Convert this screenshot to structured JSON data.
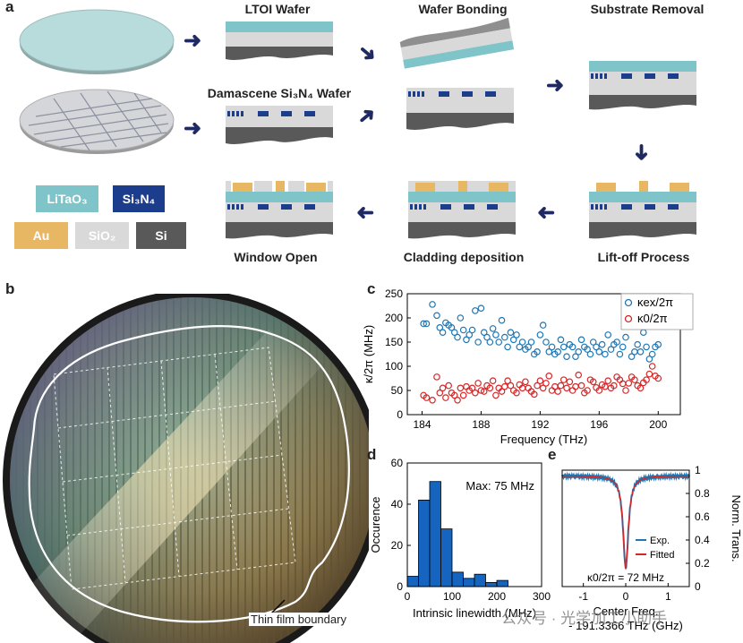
{
  "panel_a": {
    "panel_label": "a",
    "steps": {
      "ltoi_wafer": "LTOI Wafer",
      "wafer_bonding": "Wafer Bonding",
      "substrate_removal": "Substrate Removal",
      "damascene_wafer": "Damascene Si₃N₄ Wafer",
      "lift_off": "Lift-off Process",
      "cladding": "Cladding deposition",
      "window_open": "Window Open"
    },
    "legend": {
      "litao3": "LiTaO₃",
      "si3n4": "Si₃N₄",
      "au": "Au",
      "sio2": "SiO₂",
      "si": "Si"
    },
    "colors": {
      "litao3": "#7fc4c8",
      "si3n4": "#1c3c8c",
      "au": "#e8b764",
      "sio2": "#d9d9d9",
      "si": "#595959",
      "arrow": "#1f2a63"
    }
  },
  "panel_b": {
    "panel_label": "b",
    "annotation": "Thin film boundary"
  },
  "panel_c": {
    "panel_label": "c",
    "chart_data": {
      "type": "scatter",
      "xlabel": "Frequency (THz)",
      "ylabel": "κ/2π (MHz)",
      "xlim": [
        183,
        201.5
      ],
      "ylim": [
        0,
        250
      ],
      "xticks": [
        184,
        188,
        192,
        196,
        200
      ],
      "yticks": [
        0,
        50,
        100,
        150,
        200,
        250
      ],
      "series": [
        {
          "name": "κex/2π",
          "color": "#1f77b4",
          "x": [
            184.1,
            184.3,
            184.7,
            185.0,
            185.2,
            185.4,
            185.6,
            185.8,
            186.0,
            186.2,
            186.4,
            186.6,
            186.8,
            187.0,
            187.2,
            187.4,
            187.6,
            187.8,
            188.0,
            188.2,
            188.4,
            188.6,
            188.8,
            189.0,
            189.2,
            189.4,
            189.6,
            189.8,
            190.0,
            190.2,
            190.4,
            190.6,
            190.8,
            191.0,
            191.2,
            191.4,
            191.6,
            191.8,
            192.0,
            192.2,
            192.4,
            192.6,
            192.8,
            193.0,
            193.2,
            193.4,
            193.6,
            193.8,
            194.0,
            194.2,
            194.4,
            194.6,
            194.8,
            195.0,
            195.2,
            195.4,
            195.6,
            195.8,
            196.0,
            196.2,
            196.4,
            196.6,
            196.8,
            197.0,
            197.2,
            197.4,
            197.6,
            197.8,
            198.0,
            198.2,
            198.4,
            198.6,
            198.8,
            199.0,
            199.2,
            199.4,
            199.6,
            199.8,
            200.0
          ],
          "y": [
            188,
            188,
            228,
            205,
            180,
            170,
            190,
            185,
            180,
            170,
            160,
            200,
            175,
            155,
            165,
            175,
            215,
            150,
            220,
            170,
            160,
            150,
            178,
            165,
            150,
            195,
            160,
            140,
            170,
            155,
            165,
            140,
            150,
            135,
            140,
            150,
            125,
            130,
            165,
            185,
            150,
            130,
            140,
            125,
            130,
            155,
            140,
            120,
            145,
            140,
            120,
            130,
            155,
            140,
            135,
            125,
            150,
            140,
            130,
            145,
            125,
            165,
            135,
            145,
            150,
            125,
            140,
            160,
            185,
            120,
            130,
            145,
            130,
            170,
            140,
            115,
            125,
            140,
            145
          ]
        },
        {
          "name": "κ0/2π",
          "color": "#d62728",
          "x": [
            184.1,
            184.3,
            184.7,
            185.0,
            185.2,
            185.4,
            185.6,
            185.8,
            186.0,
            186.2,
            186.4,
            186.6,
            186.8,
            187.0,
            187.2,
            187.4,
            187.6,
            187.8,
            188.0,
            188.2,
            188.4,
            188.6,
            188.8,
            189.0,
            189.2,
            189.4,
            189.6,
            189.8,
            190.0,
            190.2,
            190.4,
            190.6,
            190.8,
            191.0,
            191.2,
            191.4,
            191.6,
            191.8,
            192.0,
            192.2,
            192.4,
            192.6,
            192.8,
            193.0,
            193.2,
            193.4,
            193.6,
            193.8,
            194.0,
            194.2,
            194.4,
            194.6,
            194.8,
            195.0,
            195.2,
            195.4,
            195.6,
            195.8,
            196.0,
            196.2,
            196.4,
            196.6,
            196.8,
            197.0,
            197.2,
            197.4,
            197.6,
            197.8,
            198.0,
            198.2,
            198.4,
            198.6,
            198.8,
            199.0,
            199.2,
            199.4,
            199.6,
            199.8,
            200.0
          ],
          "y": [
            40,
            35,
            30,
            78,
            45,
            55,
            35,
            60,
            45,
            40,
            30,
            55,
            40,
            58,
            50,
            55,
            45,
            65,
            50,
            48,
            60,
            55,
            70,
            40,
            55,
            48,
            58,
            70,
            60,
            50,
            45,
            62,
            55,
            68,
            55,
            48,
            42,
            60,
            70,
            55,
            65,
            80,
            50,
            58,
            48,
            60,
            72,
            55,
            68,
            50,
            58,
            82,
            60,
            45,
            50,
            72,
            68,
            56,
            50,
            62,
            58,
            70,
            55,
            60,
            78,
            72,
            64,
            50,
            65,
            78,
            72,
            60,
            55,
            66,
            72,
            84,
            100,
            80,
            75
          ]
        }
      ],
      "legend": [
        "κex/2π",
        "κ0/2π"
      ]
    }
  },
  "panel_d": {
    "panel_label": "d",
    "chart_data": {
      "type": "bar",
      "xlabel": "Intrinsic linewidth (MHz)",
      "ylabel": "Occurence",
      "xlim": [
        0,
        300
      ],
      "ylim": [
        0,
        60
      ],
      "xticks": [
        0,
        100,
        200,
        300
      ],
      "yticks": [
        0,
        20,
        40,
        60
      ],
      "bin_edges": [
        0,
        25,
        50,
        75,
        100,
        125,
        150,
        175,
        200,
        225
      ],
      "values": [
        5,
        42,
        51,
        28,
        7,
        4,
        6,
        2,
        3
      ],
      "annotation": "Max: 75 MHz",
      "bar_color": "#1565c0"
    }
  },
  "panel_e": {
    "panel_label": "e",
    "chart_data": {
      "type": "line",
      "xlabel": "Center Freq.",
      "xlabel2": "- 191.3366 THz (GHz)",
      "ylabel": "Norm. Trans.",
      "xlim": [
        -1.5,
        1.5
      ],
      "ylim": [
        0,
        1
      ],
      "xticks": [
        -1,
        0,
        1
      ],
      "yticks": [
        0,
        0.2,
        0.4,
        0.6,
        0.8,
        1
      ],
      "series": [
        {
          "name": "Exp.",
          "color": "#1f77b4",
          "linewidth_ghz": 0.15,
          "min_transmission": 0.16,
          "baseline": 0.95
        },
        {
          "name": "Fitted",
          "color": "#d62728",
          "linewidth_ghz": 0.15,
          "min_transmission": 0.16,
          "baseline": 0.95
        }
      ],
      "legend": [
        "Exp.",
        "Fitted"
      ],
      "annotation": "κ0/2π = 72 MHz"
    }
  },
  "watermark": "公众号 · 光学加工小助手"
}
